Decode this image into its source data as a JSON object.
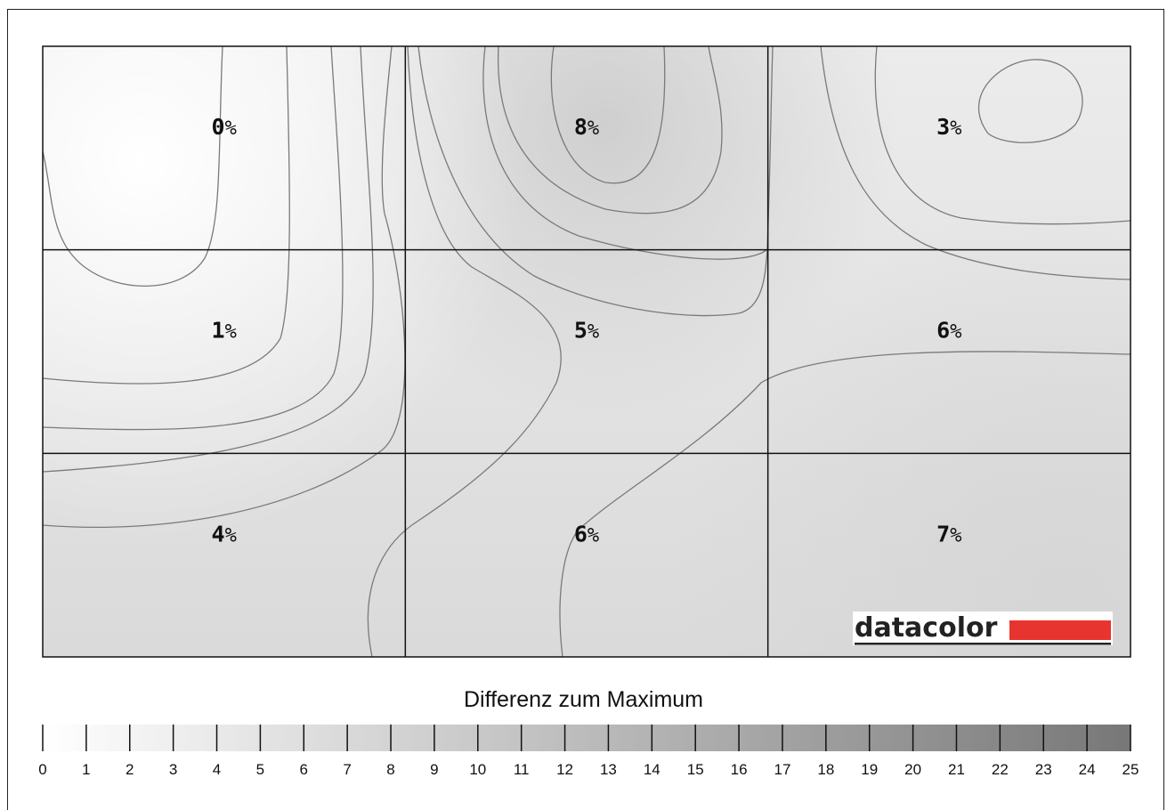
{
  "chart_data": {
    "type": "heatmap",
    "title": "",
    "grid": {
      "rows": 3,
      "cols": 3
    },
    "cells": [
      [
        {
          "label": "0%",
          "value": 0
        },
        {
          "label": "8%",
          "value": 8
        },
        {
          "label": "3%",
          "value": 3
        }
      ],
      [
        {
          "label": "1%",
          "value": 1
        },
        {
          "label": "5%",
          "value": 5
        },
        {
          "label": "6%",
          "value": 6
        }
      ],
      [
        {
          "label": "4%",
          "value": 4
        },
        {
          "label": "6%",
          "value": 6
        },
        {
          "label": "7%",
          "value": 7
        }
      ]
    ],
    "colorbar": {
      "title": "Differenz zum Maximum",
      "min": 0,
      "max": 25,
      "ticks": [
        "0",
        "1",
        "2",
        "3",
        "4",
        "5",
        "6",
        "7",
        "8",
        "9",
        "10",
        "11",
        "12",
        "13",
        "14",
        "15",
        "16",
        "17",
        "18",
        "19",
        "20",
        "21",
        "22",
        "23",
        "24",
        "25"
      ],
      "color_low": "#ffffff",
      "color_high": "#777777"
    }
  },
  "logo": {
    "text": "datacolor",
    "bar_color": "#e8342f"
  }
}
